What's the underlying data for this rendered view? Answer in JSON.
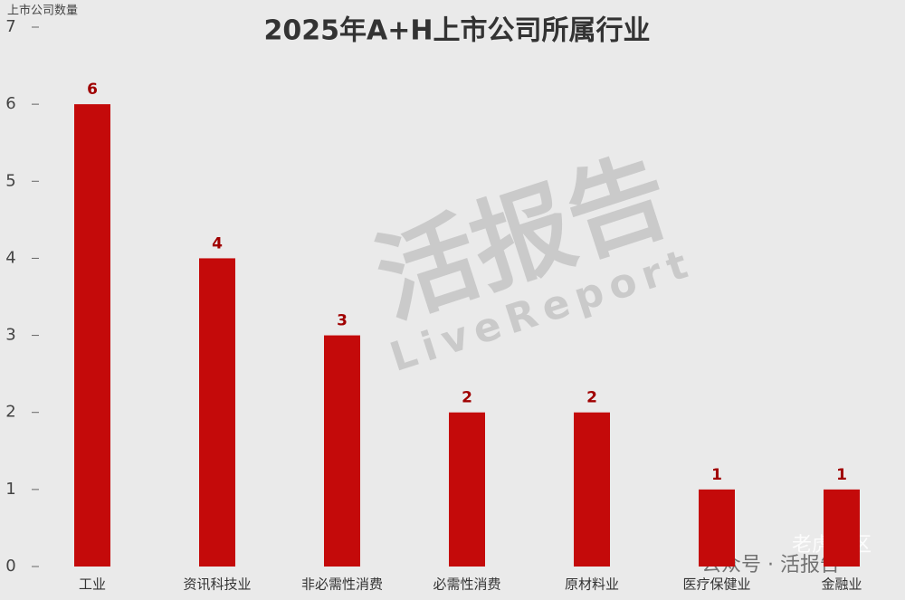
{
  "chart_data": {
    "type": "bar",
    "title": "2025年A+H上市公司所属行业",
    "y_label": "上市公司数量",
    "categories": [
      "工业",
      "资讯科技业",
      "非必需性消费",
      "必需性消费",
      "原材料业",
      "医疗保健业",
      "金融业"
    ],
    "values": [
      6,
      4,
      3,
      2,
      2,
      1,
      1
    ],
    "color": "#c40a0a",
    "ylim": [
      0,
      7
    ],
    "yticks": [
      0,
      1,
      2,
      3,
      4,
      5,
      6,
      7
    ],
    "grid": false,
    "watermarks": [
      "活报告",
      "LiveReport",
      "公众号 · 活报告",
      "老虎社区"
    ]
  }
}
